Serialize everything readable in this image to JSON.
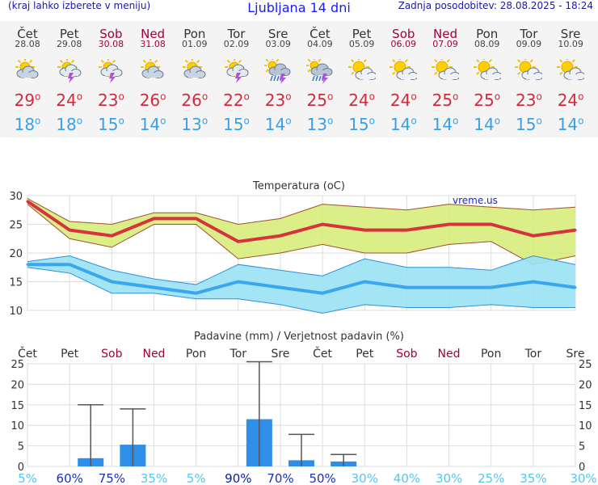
{
  "header": {
    "left_note": "(kraj lahko izberete v meniju)",
    "title": "Ljubljana 14 dni",
    "updated": "Zadnja posodobitev: 28.08.2025 - 18:24"
  },
  "days": [
    {
      "name": "Čet",
      "date": "28.08",
      "weekend": false,
      "icon": "cloudy-sun-icon",
      "tmax": "29",
      "tmin": "18"
    },
    {
      "name": "Pet",
      "date": "29.08",
      "weekend": false,
      "icon": "sun-thunder-icon",
      "tmax": "24",
      "tmin": "18"
    },
    {
      "name": "Sob",
      "date": "30.08",
      "weekend": true,
      "icon": "sun-thunder-icon",
      "tmax": "23",
      "tmin": "15"
    },
    {
      "name": "Ned",
      "date": "31.08",
      "weekend": true,
      "icon": "cloudy-sun-icon",
      "tmax": "26",
      "tmin": "14"
    },
    {
      "name": "Pon",
      "date": "01.09",
      "weekend": false,
      "icon": "cloudy-sun-icon",
      "tmax": "26",
      "tmin": "13"
    },
    {
      "name": "Tor",
      "date": "02.09",
      "weekend": false,
      "icon": "sun-thunder-icon",
      "tmax": "22",
      "tmin": "15"
    },
    {
      "name": "Sre",
      "date": "03.09",
      "weekend": false,
      "icon": "rain-thunder-icon",
      "tmax": "23",
      "tmin": "14"
    },
    {
      "name": "Čet",
      "date": "04.09",
      "weekend": false,
      "icon": "rain-thunder-icon",
      "tmax": "25",
      "tmin": "13"
    },
    {
      "name": "Pet",
      "date": "05.09",
      "weekend": false,
      "icon": "partly-cloudy-icon",
      "tmax": "24",
      "tmin": "15"
    },
    {
      "name": "Sob",
      "date": "06.09",
      "weekend": true,
      "icon": "partly-cloudy-icon",
      "tmax": "24",
      "tmin": "14"
    },
    {
      "name": "Ned",
      "date": "07.09",
      "weekend": true,
      "icon": "partly-cloudy-icon",
      "tmax": "25",
      "tmin": "14"
    },
    {
      "name": "Pon",
      "date": "08.09",
      "weekend": false,
      "icon": "partly-cloudy-icon",
      "tmax": "25",
      "tmin": "14"
    },
    {
      "name": "Tor",
      "date": "09.09",
      "weekend": false,
      "icon": "partly-cloudy-icon",
      "tmax": "23",
      "tmin": "15"
    },
    {
      "name": "Sre",
      "date": "10.09",
      "weekend": false,
      "icon": "partly-cloudy-icon",
      "tmax": "24",
      "tmin": "14"
    }
  ],
  "colors": {
    "max_line": "#d6323f",
    "max_band": "#d8ec7a",
    "min_line": "#3aa6ee",
    "min_band": "#99e2f4",
    "precip_bar": "#2f8fe8",
    "weekend_text": "#a0003c"
  },
  "chart_data": [
    {
      "type": "line",
      "title": "Temperatura",
      "unit": "(oC)",
      "watermark": "vreme.us",
      "ylim": [
        10,
        30
      ],
      "yticks": [
        10,
        15,
        20,
        25,
        30
      ],
      "grid": true,
      "series": [
        {
          "name": "max",
          "values": [
            29,
            24,
            23,
            26,
            26,
            22,
            23,
            25,
            24,
            24,
            25,
            25,
            23,
            24
          ],
          "band_low": [
            28.5,
            22.5,
            21,
            25,
            25,
            19,
            20,
            21.5,
            20,
            20,
            21.5,
            22,
            18,
            19.5
          ],
          "band_high": [
            29.5,
            25.5,
            25,
            27,
            27,
            25,
            26,
            28.5,
            28,
            27.5,
            28.5,
            28,
            27.5,
            28
          ]
        },
        {
          "name": "min",
          "values": [
            18,
            18,
            15,
            14,
            13,
            15,
            14,
            13,
            15,
            14,
            14,
            14,
            15,
            14
          ],
          "band_low": [
            17.5,
            16.5,
            13,
            13,
            12,
            12,
            11,
            9.5,
            11,
            10.5,
            10.5,
            11,
            10.5,
            10.5
          ],
          "band_high": [
            18.5,
            19.5,
            17,
            15.5,
            14.5,
            18,
            17,
            16,
            19,
            17.5,
            17.5,
            17,
            19.5,
            18
          ]
        }
      ]
    },
    {
      "type": "bar",
      "title": "Padavine (mm) / Verjetnost padavin (%)",
      "ylim": [
        0,
        25
      ],
      "yticks": [
        0,
        5,
        10,
        15,
        20,
        25
      ],
      "categories": [
        "Čet",
        "Pet",
        "Sob",
        "Ned",
        "Pon",
        "Tor",
        "Sre",
        "Čet",
        "Pet",
        "Sob",
        "Ned",
        "Pon",
        "Tor",
        "Sre"
      ],
      "precip_mm": [
        0,
        2,
        5.3,
        0,
        0,
        11.5,
        1.5,
        1.2,
        0,
        0,
        0,
        0,
        0,
        0
      ],
      "precip_max": [
        0,
        15,
        14,
        0,
        0,
        25.5,
        7.8,
        2.9,
        0,
        0,
        0,
        0,
        0,
        0
      ],
      "probability": [
        "5%",
        "60%",
        "75%",
        "35%",
        "5%",
        "90%",
        "70%",
        "50%",
        "30%",
        "40%",
        "30%",
        "25%",
        "35%",
        "30%"
      ]
    }
  ]
}
